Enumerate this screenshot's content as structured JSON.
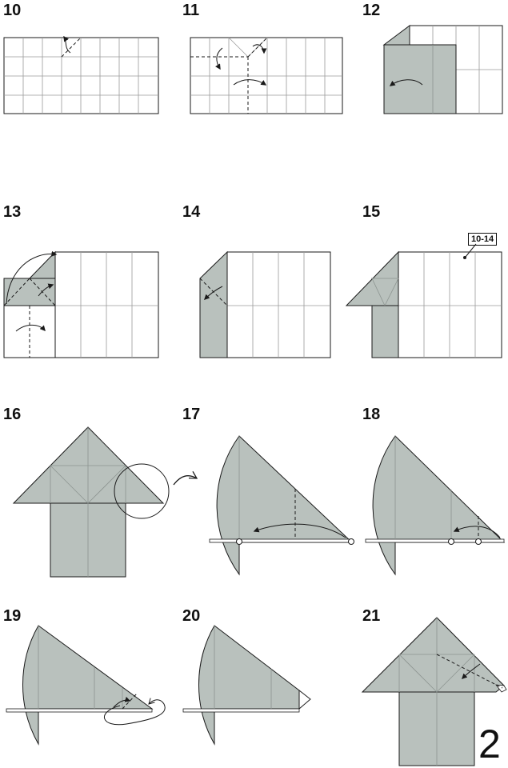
{
  "steps": [
    {
      "number": "10"
    },
    {
      "number": "11"
    },
    {
      "number": "12"
    },
    {
      "number": "13"
    },
    {
      "number": "14"
    },
    {
      "number": "15"
    },
    {
      "number": "16"
    },
    {
      "number": "17"
    },
    {
      "number": "18"
    },
    {
      "number": "19"
    },
    {
      "number": "20"
    },
    {
      "number": "21"
    }
  ],
  "reference_label": "10-14",
  "page_number": "2",
  "colors": {
    "paper_colored": "#b9c1bd",
    "paper_white": "#ffffff",
    "line": "#1a1a1a",
    "crease": "#9a9a9a"
  }
}
